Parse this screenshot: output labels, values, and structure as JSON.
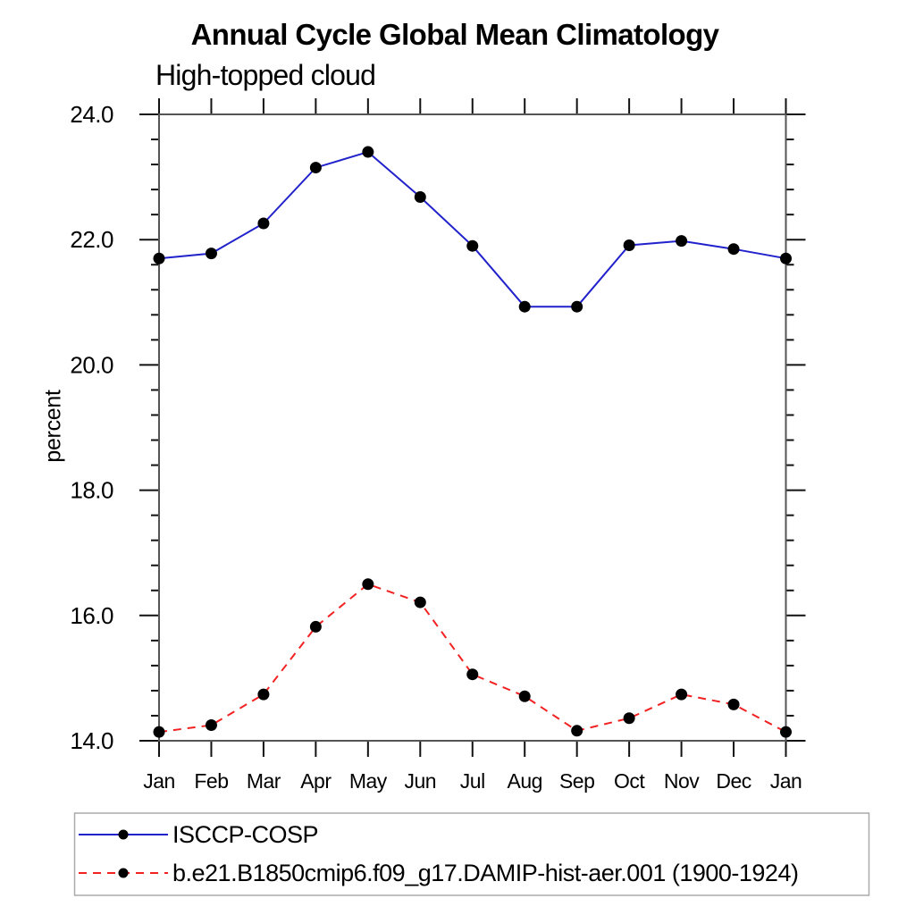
{
  "chart_data": {
    "type": "line",
    "title": "Annual Cycle Global Mean Climatology",
    "subtitle": "High-topped cloud",
    "ylabel": "percent",
    "xlabel": "",
    "categories": [
      "Jan",
      "Feb",
      "Mar",
      "Apr",
      "May",
      "Jun",
      "Jul",
      "Aug",
      "Sep",
      "Oct",
      "Nov",
      "Dec",
      "Jan"
    ],
    "ylim": [
      14.0,
      24.0
    ],
    "y_major_step": 2.0,
    "y_minor_step": 0.4,
    "y_tick_labels": [
      "14.0",
      "16.0",
      "18.0",
      "20.0",
      "22.0",
      "24.0"
    ],
    "grid": false,
    "legend_position": "bottom-left-box",
    "colors": {
      "frame": "#555555",
      "ticks": "#111111",
      "marker": "#000000",
      "legend_border": "#aaaaaa",
      "series_blue": "#2222cc",
      "series_red": "#f22222"
    },
    "series": [
      {
        "name": "ISCCP-COSP",
        "color": "#2222cc",
        "line_style": "solid",
        "marker": "filled-circle",
        "values": [
          21.7,
          21.78,
          22.26,
          23.15,
          23.4,
          22.68,
          21.9,
          20.93,
          20.93,
          21.91,
          21.98,
          21.85,
          21.7
        ]
      },
      {
        "name": "b.e21.B1850cmip6.f09_g17.DAMIP-hist-aer.001 (1900-1924)",
        "color": "#f22222",
        "line_style": "dashed",
        "marker": "filled-circle",
        "values": [
          14.14,
          14.25,
          14.74,
          15.82,
          16.5,
          16.21,
          15.06,
          14.71,
          14.16,
          14.36,
          14.74,
          14.58,
          14.14
        ]
      }
    ]
  }
}
